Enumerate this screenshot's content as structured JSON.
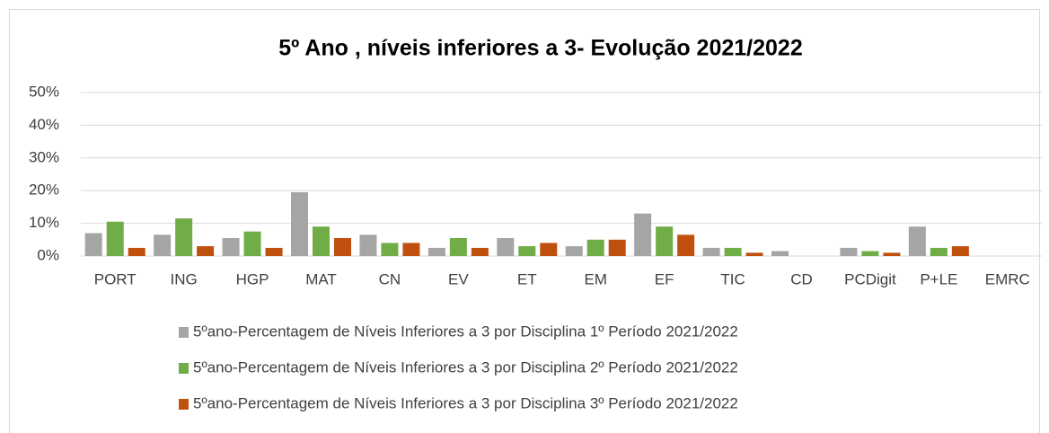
{
  "chart_data": {
    "type": "bar",
    "title": "5º Ano , níveis inferiores a 3- Evolução 2021/2022",
    "categories": [
      "PORT",
      "ING",
      "HGP",
      "MAT",
      "CN",
      "EV",
      "ET",
      "EM",
      "EF",
      "TIC",
      "CD",
      "PCDigit",
      "P+LE",
      "EMRC"
    ],
    "series": [
      {
        "name": "5ºano-Percentagem de Níveis Inferiores a 3 por Disciplina 1º Período 2021/2022",
        "color": "#a5a5a5",
        "values": [
          7,
          6.5,
          5.5,
          19.5,
          6.5,
          2.5,
          5.5,
          3,
          13,
          2.5,
          1.5,
          2.5,
          9,
          0
        ]
      },
      {
        "name": "5ºano-Percentagem de Níveis Inferiores a 3 por Disciplina 2º Período 2021/2022",
        "color": "#70ad47",
        "values": [
          10.5,
          11.5,
          7.5,
          9,
          4,
          5.5,
          3,
          5,
          9,
          2.5,
          0,
          1.5,
          2.5,
          0
        ]
      },
      {
        "name": "5ºano-Percentagem de Níveis Inferiores a 3 por Disciplina 3º Período 2021/2022",
        "color": "#c0500e",
        "values": [
          2.5,
          3,
          2.5,
          5.5,
          4,
          2.5,
          4,
          5,
          6.5,
          1,
          0,
          1,
          3,
          0
        ]
      }
    ],
    "ylim": [
      0,
      50
    ],
    "yticks": [
      {
        "value": 0,
        "label": "0%"
      },
      {
        "value": 10,
        "label": "10%"
      },
      {
        "value": 20,
        "label": "20%"
      },
      {
        "value": 30,
        "label": "30%"
      },
      {
        "value": 40,
        "label": "40%"
      },
      {
        "value": 50,
        "label": "50%"
      }
    ],
    "grid": true
  }
}
